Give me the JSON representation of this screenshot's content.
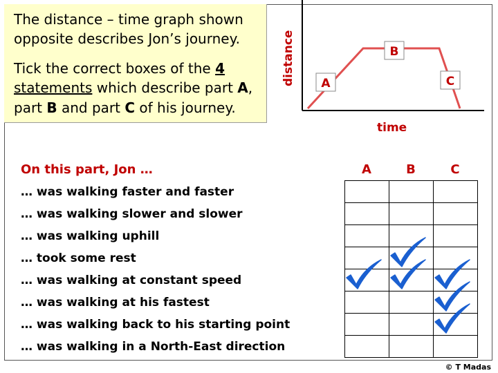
{
  "intro": {
    "line1": "The distance – time graph shown opposite describes Jon’s journey.",
    "line2_pre": "Tick the correct boxes of the ",
    "line2_num": "4",
    "line2_stmts": "statements",
    "line2_post": " which describe part ",
    "part_a": "A",
    "comma1": ", part ",
    "part_b": "B",
    "and_part": " and part ",
    "part_c": "C",
    "tail": " of his journey."
  },
  "graph": {
    "y_label": "distance",
    "x_label": "time",
    "labels": {
      "a": "A",
      "b": "B",
      "c": "C"
    },
    "line_color": "#e05050",
    "label_color": "#c00000"
  },
  "table": {
    "header": "On this part, Jon …",
    "columns": [
      "A",
      "B",
      "C"
    ],
    "rows": [
      {
        "text": "… was walking faster and faster",
        "ticks": [
          false,
          false,
          false
        ]
      },
      {
        "text": "… was walking slower and slower",
        "ticks": [
          false,
          false,
          false
        ]
      },
      {
        "text": "… was walking uphill",
        "ticks": [
          false,
          false,
          false
        ]
      },
      {
        "text": "… took some rest",
        "ticks": [
          false,
          true,
          false
        ]
      },
      {
        "text": "… was walking at constant speed",
        "ticks": [
          true,
          true,
          true
        ]
      },
      {
        "text": "… was walking at his fastest",
        "ticks": [
          false,
          false,
          true
        ]
      },
      {
        "text": "… was walking back to his starting point",
        "ticks": [
          false,
          false,
          true
        ]
      },
      {
        "text": "… was walking in a North-East direction",
        "ticks": [
          false,
          false,
          false
        ]
      }
    ],
    "tick_color": "#1a5fd0"
  },
  "copyright": "© T Madas"
}
